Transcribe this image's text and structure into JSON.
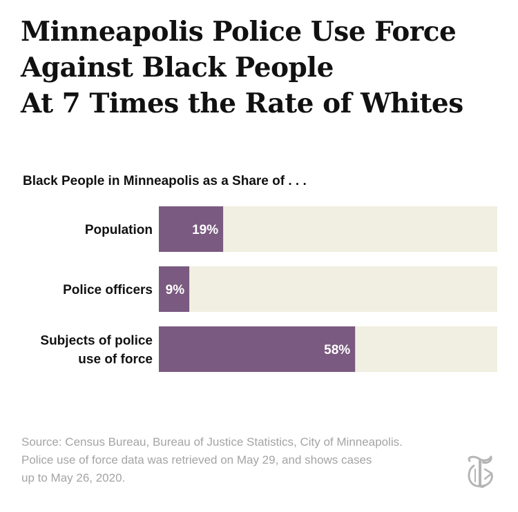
{
  "headline": {
    "lines": [
      "Minneapolis Police Use Force",
      "Against Black People",
      "At 7 Times the Rate of Whites"
    ]
  },
  "chart_data": {
    "type": "bar",
    "orientation": "horizontal",
    "title": "Black People in Minneapolis as a Share of . . .",
    "categories": [
      [
        "Population"
      ],
      [
        "Police officers"
      ],
      [
        "Subjects of police",
        "use of force"
      ]
    ],
    "values": [
      19,
      9,
      58
    ],
    "value_labels": [
      "19%",
      "9%",
      "58%"
    ],
    "xlim": [
      0,
      100
    ],
    "bar_color": "#7a5a80",
    "track_color": "#f1efe1",
    "grid": false
  },
  "source": {
    "lines": [
      "Source: Census Bureau, Bureau of Justice Statistics, City of Minneapolis.",
      "Police use of force data was retrieved on May 29, and shows cases",
      "up to May 26, 2020."
    ]
  },
  "logo": {
    "icon": "nyt-t-logo-icon",
    "color": "#b5b5b5"
  }
}
